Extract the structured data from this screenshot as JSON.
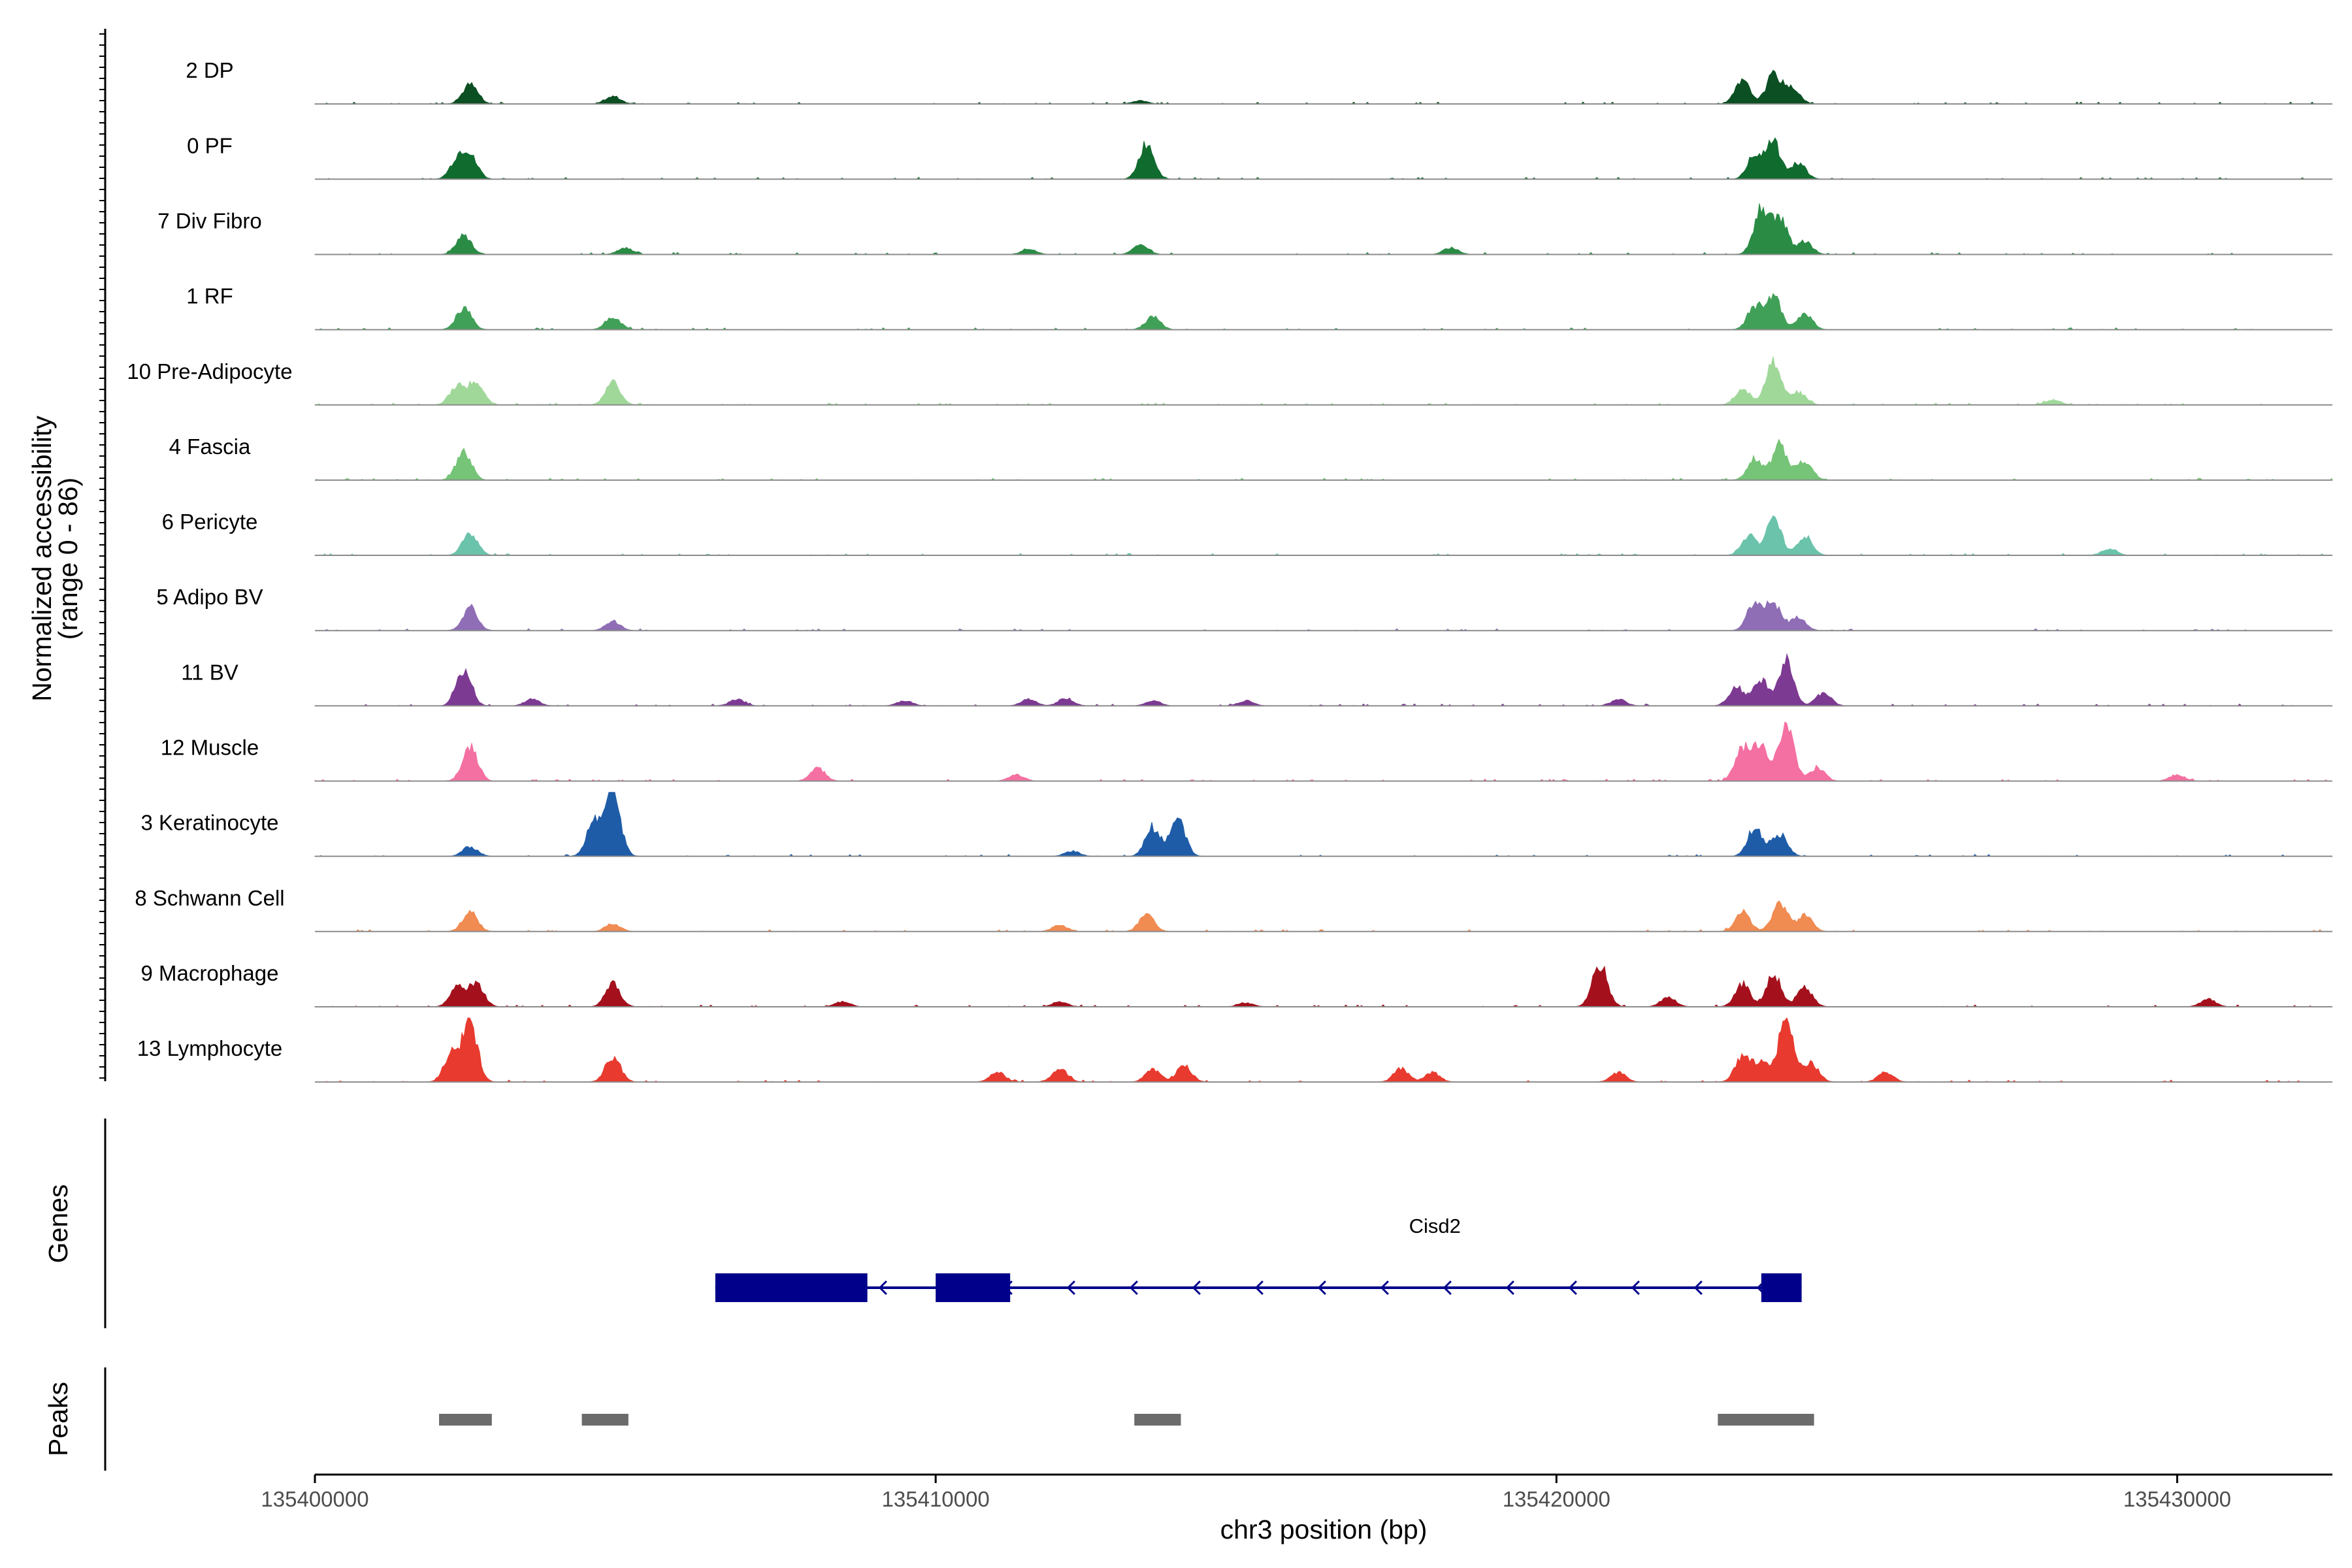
{
  "chart_data": {
    "type": "area",
    "title": "",
    "ylabel_line1": "Normalized accessibility",
    "ylabel_line2": "(range 0 - 86)",
    "xlabel": "chr3 position (bp)",
    "chromosome": "chr3",
    "xlim": [
      135400000,
      135432500
    ],
    "ylim": [
      0,
      86
    ],
    "x_ticks": [
      135400000,
      135410000,
      135420000,
      135430000
    ],
    "x_tick_labels": [
      "135400000",
      "135410000",
      "135420000",
      "135430000"
    ],
    "tracks": [
      {
        "name": "2 DP",
        "color": "#0b4f22",
        "peaks": [
          [
            135402500,
            0.3
          ],
          [
            135404800,
            0.12
          ],
          [
            135413300,
            0.05
          ],
          [
            135423000,
            0.35
          ],
          [
            135423500,
            0.45
          ],
          [
            135423800,
            0.25
          ]
        ]
      },
      {
        "name": "0 PF",
        "color": "#106b2e",
        "peaks": [
          [
            135402300,
            0.3
          ],
          [
            135402500,
            0.35
          ],
          [
            135413400,
            0.55
          ],
          [
            135423200,
            0.4
          ],
          [
            135423500,
            0.55
          ],
          [
            135423900,
            0.25
          ]
        ]
      },
      {
        "name": "7 Div Fibro",
        "color": "#2a8b45",
        "peaks": [
          [
            135402400,
            0.3
          ],
          [
            135405000,
            0.1
          ],
          [
            135411500,
            0.08
          ],
          [
            135413300,
            0.15
          ],
          [
            135418300,
            0.1
          ],
          [
            135423300,
            0.7
          ],
          [
            135423600,
            0.55
          ],
          [
            135424000,
            0.2
          ]
        ]
      },
      {
        "name": "1 RF",
        "color": "#40a057",
        "peaks": [
          [
            135402400,
            0.35
          ],
          [
            135404800,
            0.2
          ],
          [
            135413500,
            0.2
          ],
          [
            135423200,
            0.35
          ],
          [
            135423500,
            0.5
          ],
          [
            135424000,
            0.25
          ]
        ]
      },
      {
        "name": "10 Pre-Adipocyte",
        "color": "#a0d89a",
        "peaks": [
          [
            135402300,
            0.3
          ],
          [
            135402600,
            0.35
          ],
          [
            135404800,
            0.35
          ],
          [
            135423000,
            0.25
          ],
          [
            135423500,
            0.7
          ],
          [
            135423900,
            0.2
          ],
          [
            135428000,
            0.08
          ]
        ]
      },
      {
        "name": "4 Fascia",
        "color": "#76c477",
        "peaks": [
          [
            135402400,
            0.45
          ],
          [
            135423200,
            0.35
          ],
          [
            135423600,
            0.55
          ],
          [
            135424000,
            0.3
          ]
        ]
      },
      {
        "name": "6 Pericyte",
        "color": "#6bc3ab",
        "peaks": [
          [
            135402500,
            0.35
          ],
          [
            135423100,
            0.3
          ],
          [
            135423500,
            0.55
          ],
          [
            135424000,
            0.3
          ],
          [
            135428900,
            0.1
          ]
        ]
      },
      {
        "name": "5 Adipo BV",
        "color": "#8f6eb5",
        "peaks": [
          [
            135402500,
            0.35
          ],
          [
            135404800,
            0.15
          ],
          [
            135423200,
            0.45
          ],
          [
            135423500,
            0.4
          ],
          [
            135423900,
            0.2
          ]
        ]
      },
      {
        "name": "11 BV",
        "color": "#7d3a92",
        "peaks": [
          [
            135402400,
            0.55
          ],
          [
            135403500,
            0.1
          ],
          [
            135406800,
            0.1
          ],
          [
            135409500,
            0.08
          ],
          [
            135411500,
            0.1
          ],
          [
            135412100,
            0.12
          ],
          [
            135413500,
            0.08
          ],
          [
            135415000,
            0.08
          ],
          [
            135421000,
            0.1
          ],
          [
            135422900,
            0.3
          ],
          [
            135423300,
            0.4
          ],
          [
            135423700,
            0.7
          ],
          [
            135424300,
            0.2
          ]
        ]
      },
      {
        "name": "12 Muscle",
        "color": "#f470a2",
        "peaks": [
          [
            135402500,
            0.55
          ],
          [
            135408100,
            0.2
          ],
          [
            135411300,
            0.1
          ],
          [
            135423000,
            0.5
          ],
          [
            135423300,
            0.55
          ],
          [
            135423700,
            0.85
          ],
          [
            135424200,
            0.2
          ],
          [
            135430000,
            0.1
          ]
        ]
      },
      {
        "name": "3 Keratinocyte",
        "color": "#1f5ca8",
        "peaks": [
          [
            135402500,
            0.15
          ],
          [
            135404500,
            0.55
          ],
          [
            135404800,
            1.0
          ],
          [
            135412200,
            0.08
          ],
          [
            135413500,
            0.45
          ],
          [
            135413900,
            0.55
          ],
          [
            135423200,
            0.45
          ],
          [
            135423600,
            0.35
          ]
        ]
      },
      {
        "name": "8 Schwann Cell",
        "color": "#f08b52",
        "peaks": [
          [
            135402500,
            0.3
          ],
          [
            135404800,
            0.12
          ],
          [
            135412000,
            0.1
          ],
          [
            135413400,
            0.25
          ],
          [
            135423000,
            0.3
          ],
          [
            135423600,
            0.45
          ],
          [
            135424000,
            0.25
          ]
        ]
      },
      {
        "name": "9 Macrophage",
        "color": "#a4111d",
        "peaks": [
          [
            135402300,
            0.3
          ],
          [
            135402600,
            0.35
          ],
          [
            135404800,
            0.35
          ],
          [
            135408500,
            0.08
          ],
          [
            135412000,
            0.08
          ],
          [
            135415000,
            0.06
          ],
          [
            135420700,
            0.65
          ],
          [
            135421800,
            0.15
          ],
          [
            135423000,
            0.35
          ],
          [
            135423500,
            0.5
          ],
          [
            135424000,
            0.3
          ],
          [
            135430500,
            0.12
          ]
        ]
      },
      {
        "name": "13 Lymphocyte",
        "color": "#e83a2f",
        "peaks": [
          [
            135402200,
            0.45
          ],
          [
            135402500,
            0.9
          ],
          [
            135404800,
            0.4
          ],
          [
            135411000,
            0.15
          ],
          [
            135412000,
            0.2
          ],
          [
            135413500,
            0.2
          ],
          [
            135414000,
            0.25
          ],
          [
            135417500,
            0.2
          ],
          [
            135418000,
            0.15
          ],
          [
            135421000,
            0.15
          ],
          [
            135423000,
            0.4
          ],
          [
            135423300,
            0.3
          ],
          [
            135423700,
            1.0
          ],
          [
            135424100,
            0.3
          ],
          [
            135425300,
            0.15
          ]
        ]
      }
    ],
    "genes_panel": {
      "label": "Genes",
      "gene_name": "Cisd2",
      "strand": "-",
      "color": "#00008b",
      "start": 135406450,
      "end": 135423950,
      "exons": [
        [
          135406450,
          135408900
        ],
        [
          135410000,
          135411200
        ],
        [
          135423300,
          135423950
        ]
      ]
    },
    "peaks_panel": {
      "label": "Peaks",
      "color": "#6b6b6b",
      "regions": [
        [
          135402000,
          135402850
        ],
        [
          135404300,
          135405050
        ],
        [
          135413200,
          135413950
        ],
        [
          135422600,
          135424150
        ]
      ]
    }
  }
}
